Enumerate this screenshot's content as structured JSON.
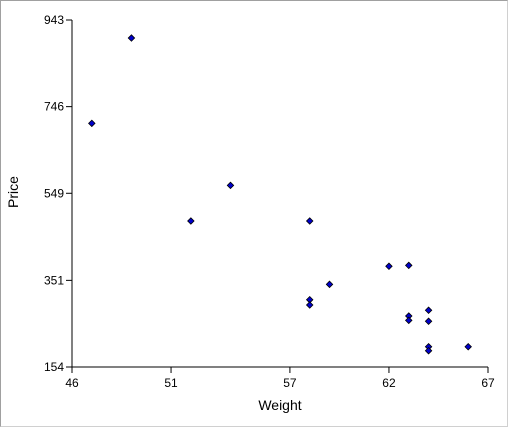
{
  "chart_data": {
    "type": "scatter",
    "title": "",
    "xlabel": "Weight",
    "ylabel": "Price",
    "xlim": [
      46,
      67
    ],
    "ylim": [
      154,
      943
    ],
    "x_ticks": [
      "46",
      "51",
      "57",
      "62",
      "67"
    ],
    "y_ticks": [
      "154",
      "351",
      "549",
      "746",
      "943"
    ],
    "grid": false,
    "legend": "none",
    "marker_color": "#0000cc",
    "marker_edge_color": "#000000",
    "axis_color": "#000000",
    "series": [
      {
        "points": [
          {
            "x": 47,
            "y": 708
          },
          {
            "x": 49,
            "y": 902
          },
          {
            "x": 52,
            "y": 486
          },
          {
            "x": 54,
            "y": 567
          },
          {
            "x": 58,
            "y": 486
          },
          {
            "x": 58,
            "y": 307
          },
          {
            "x": 58,
            "y": 295
          },
          {
            "x": 59,
            "y": 342
          },
          {
            "x": 62,
            "y": 383
          },
          {
            "x": 63,
            "y": 385
          },
          {
            "x": 63,
            "y": 270
          },
          {
            "x": 63,
            "y": 260
          },
          {
            "x": 64,
            "y": 283
          },
          {
            "x": 64,
            "y": 258
          },
          {
            "x": 64,
            "y": 200
          },
          {
            "x": 64,
            "y": 191
          },
          {
            "x": 66,
            "y": 200
          }
        ]
      }
    ]
  }
}
